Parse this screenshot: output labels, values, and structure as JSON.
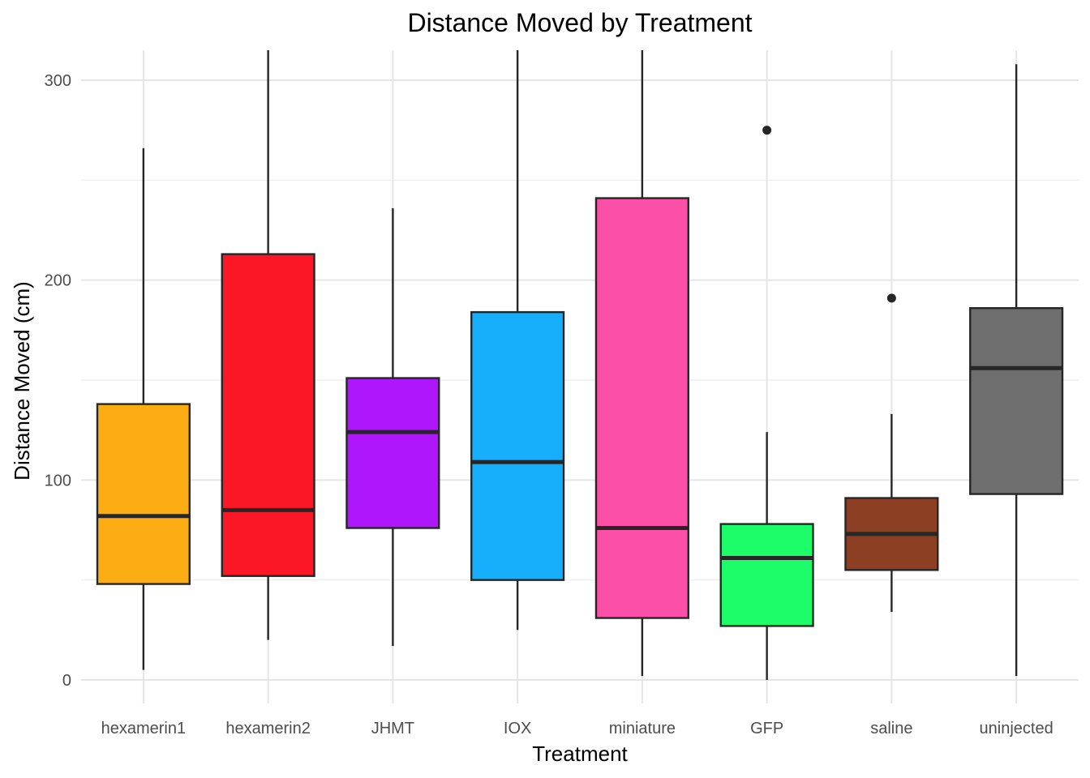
{
  "chart_data": {
    "type": "boxplot",
    "title": "Distance Moved by Treatment",
    "xlabel": "Treatment",
    "ylabel": "Distance Moved (cm)",
    "ylim": [
      -12,
      315
    ],
    "yticks": [
      0,
      100,
      200,
      300
    ],
    "ytick_labels": [
      "0",
      "100",
      "200",
      "300"
    ],
    "categories": [
      "hexamerin1",
      "hexamerin2",
      "JHMT",
      "IOX",
      "miniature",
      "GFP",
      "saline",
      "uninjected"
    ],
    "series": [
      {
        "name": "hexamerin1",
        "color": "#FCAD14",
        "min": 5,
        "q1": 48,
        "median": 82,
        "q3": 138,
        "max": 266,
        "outliers": []
      },
      {
        "name": "hexamerin2",
        "color": "#FC1726",
        "min": 20,
        "q1": 52,
        "median": 85,
        "q3": 213,
        "max": 315,
        "outliers": []
      },
      {
        "name": "JHMT",
        "color": "#AE17FC",
        "min": 17,
        "q1": 76,
        "median": 124,
        "q3": 151,
        "max": 236,
        "outliers": []
      },
      {
        "name": "IOX",
        "color": "#17AFFC",
        "min": 25,
        "q1": 50,
        "median": 109,
        "q3": 184,
        "max": 315,
        "outliers": []
      },
      {
        "name": "miniature",
        "color": "#FC50A8",
        "min": 2,
        "q1": 31,
        "median": 76,
        "q3": 241,
        "max": 315,
        "outliers": []
      },
      {
        "name": "GFP",
        "color": "#1DFD6A",
        "min": 0,
        "q1": 27,
        "median": 61,
        "q3": 78,
        "max": 124,
        "outliers": [
          275
        ]
      },
      {
        "name": "saline",
        "color": "#8C3F22",
        "min": 34,
        "q1": 55,
        "median": 73,
        "q3": 91,
        "max": 133,
        "outliers": [
          191
        ]
      },
      {
        "name": "uninjected",
        "color": "#6E6E6E",
        "min": 2,
        "q1": 93,
        "median": 156,
        "q3": 186,
        "max": 308,
        "outliers": []
      }
    ],
    "grid": true,
    "legend": "none"
  }
}
